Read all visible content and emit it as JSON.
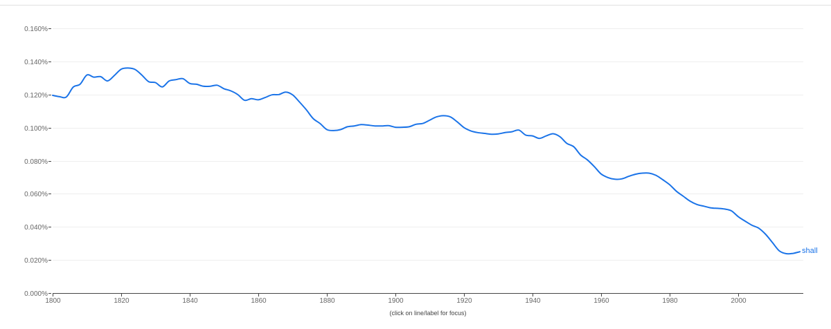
{
  "hint": "(click on line/label for focus)",
  "colors": {
    "series": "#1a73e8",
    "grid": "#eeeeee",
    "axis": "#444444",
    "tick_text": "#666666"
  },
  "chart_data": {
    "type": "line",
    "title": "",
    "xlabel": "",
    "ylabel": "",
    "xlim": [
      1800,
      2019
    ],
    "ylim": [
      0,
      0.16
    ],
    "grid": true,
    "x_ticks": [
      1800,
      1820,
      1840,
      1860,
      1880,
      1900,
      1920,
      1940,
      1960,
      1980,
      2000
    ],
    "x_tick_labels": [
      "1800",
      "1820",
      "1840",
      "1860",
      "1880",
      "1900",
      "1920",
      "1940",
      "1960",
      "1980",
      "2000"
    ],
    "y_ticks": [
      0,
      0.02,
      0.04,
      0.06,
      0.08,
      0.1,
      0.12,
      0.14,
      0.16
    ],
    "y_tick_labels": [
      "0.000%",
      "0.020%",
      "0.040%",
      "0.060%",
      "0.080%",
      "0.100%",
      "0.120%",
      "0.140%",
      "0.160%"
    ],
    "series": [
      {
        "name": "shall",
        "color": "#1a73e8",
        "x": [
          1800,
          1802,
          1804,
          1806,
          1808,
          1810,
          1812,
          1814,
          1816,
          1818,
          1820,
          1822,
          1824,
          1826,
          1828,
          1830,
          1832,
          1834,
          1836,
          1838,
          1840,
          1842,
          1844,
          1846,
          1848,
          1850,
          1852,
          1854,
          1856,
          1858,
          1860,
          1862,
          1864,
          1866,
          1868,
          1870,
          1872,
          1874,
          1876,
          1878,
          1880,
          1882,
          1884,
          1886,
          1888,
          1890,
          1892,
          1894,
          1896,
          1898,
          1900,
          1902,
          1904,
          1906,
          1908,
          1910,
          1912,
          1914,
          1916,
          1918,
          1920,
          1922,
          1924,
          1926,
          1928,
          1930,
          1932,
          1934,
          1936,
          1938,
          1940,
          1942,
          1944,
          1946,
          1948,
          1950,
          1952,
          1954,
          1956,
          1958,
          1960,
          1962,
          1964,
          1966,
          1968,
          1970,
          1972,
          1974,
          1976,
          1978,
          1980,
          1982,
          1984,
          1986,
          1988,
          1990,
          1992,
          1994,
          1996,
          1998,
          2000,
          2002,
          2004,
          2006,
          2008,
          2010,
          2012,
          2014,
          2016,
          2018
        ],
        "y": [
          0.1195,
          0.1187,
          0.1185,
          0.1245,
          0.1262,
          0.1318,
          0.1305,
          0.1308,
          0.1282,
          0.1315,
          0.1353,
          0.136,
          0.1352,
          0.1318,
          0.1278,
          0.1272,
          0.1246,
          0.1282,
          0.129,
          0.1296,
          0.1267,
          0.1262,
          0.125,
          0.125,
          0.1256,
          0.1235,
          0.1222,
          0.12,
          0.1165,
          0.1175,
          0.1168,
          0.1182,
          0.1198,
          0.12,
          0.1215,
          0.1198,
          0.1155,
          0.1108,
          0.1055,
          0.1025,
          0.0988,
          0.0982,
          0.0988,
          0.1005,
          0.101,
          0.1018,
          0.1015,
          0.101,
          0.101,
          0.1012,
          0.1002,
          0.1002,
          0.1005,
          0.102,
          0.1025,
          0.1045,
          0.1065,
          0.1072,
          0.1065,
          0.1035,
          0.1,
          0.098,
          0.097,
          0.0965,
          0.096,
          0.0962,
          0.097,
          0.0975,
          0.0985,
          0.0955,
          0.095,
          0.0935,
          0.095,
          0.0963,
          0.0945,
          0.0905,
          0.0885,
          0.0835,
          0.0805,
          0.0765,
          0.072,
          0.0698,
          0.0688,
          0.069,
          0.0705,
          0.0718,
          0.0725,
          0.0725,
          0.0712,
          0.0685,
          0.0655,
          0.0615,
          0.0585,
          0.0555,
          0.0535,
          0.0525,
          0.0515,
          0.0512,
          0.0508,
          0.0497,
          0.0462,
          0.0435,
          0.041,
          0.0392,
          0.0355,
          0.0305,
          0.0255,
          0.0238,
          0.024,
          0.025
        ]
      }
    ]
  }
}
